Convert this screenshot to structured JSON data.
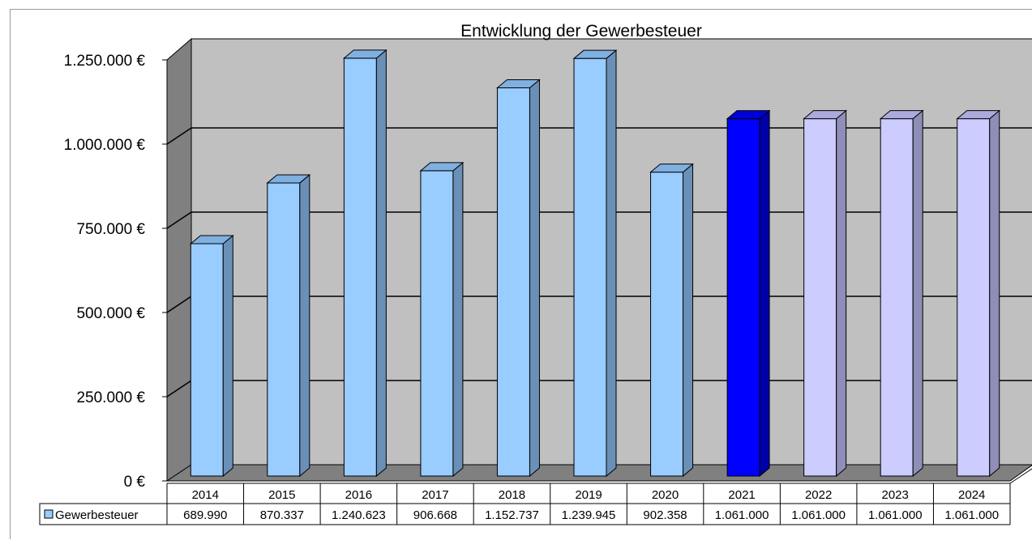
{
  "chart_data": {
    "type": "bar",
    "title": "Entwicklung der Gewerbesteuer",
    "categories": [
      "2014",
      "2015",
      "2016",
      "2017",
      "2018",
      "2019",
      "2020",
      "2021",
      "2022",
      "2023",
      "2024"
    ],
    "series": [
      {
        "name": "Gewerbesteuer",
        "values": [
          689990,
          870337,
          1240623,
          906668,
          1152737,
          1239945,
          902358,
          1061000,
          1061000,
          1061000,
          1061000
        ],
        "value_labels": [
          "689.990",
          "870.337",
          "1.240.623",
          "906.668",
          "1.152.737",
          "1.239.945",
          "902.358",
          "1.061.000",
          "1.061.000",
          "1.061.000",
          "1.061.000"
        ]
      }
    ],
    "ylim": [
      0,
      1250000
    ],
    "yticks": [
      0,
      250000,
      500000,
      750000,
      1000000,
      1250000
    ],
    "ytick_labels": [
      "0 €",
      "250.000 €",
      "500.000 €",
      "750.000 €",
      "1.000.000 €",
      "1.250.000 €"
    ],
    "grid": true,
    "legend": "data table",
    "colors": {
      "actual": "#99ccff",
      "current": "#0000ff",
      "plan": "#ccccff",
      "wall": "#c0c0c0",
      "floor": "#808080"
    }
  }
}
